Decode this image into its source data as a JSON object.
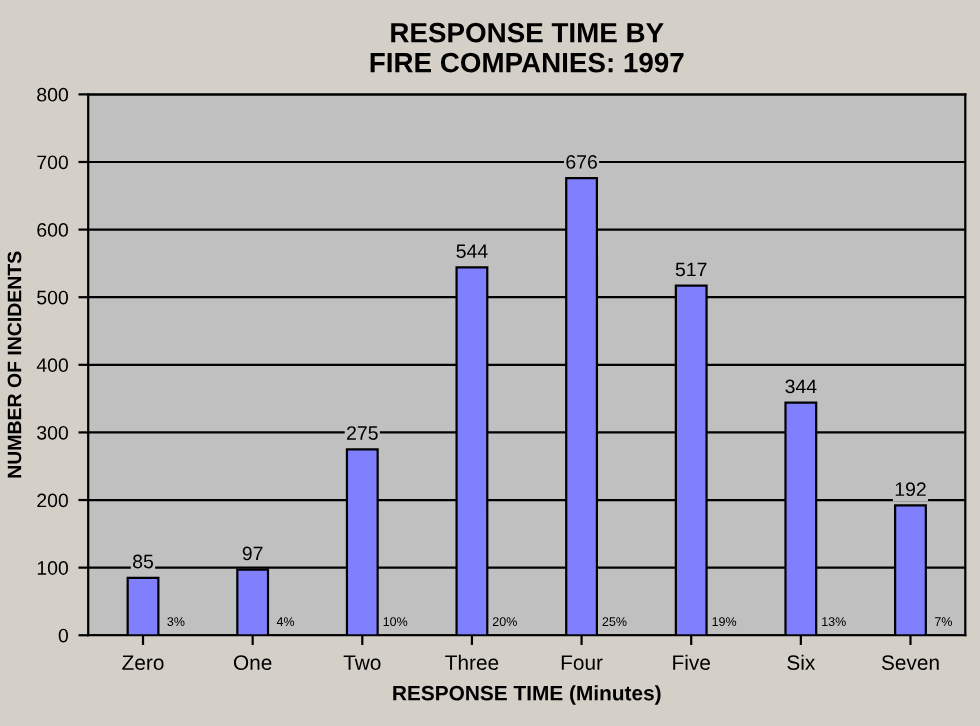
{
  "chart_data": {
    "type": "bar",
    "title": "RESPONSE TIME BY\nFIRE COMPANIES: 1997",
    "xlabel": "RESPONSE TIME (Minutes)",
    "ylabel": "NUMBER OF INCIDENTS",
    "categories": [
      "Zero",
      "One",
      "Two",
      "Three",
      "Four",
      "Five",
      "Six",
      "Seven"
    ],
    "values": [
      85,
      97,
      275,
      544,
      676,
      517,
      344,
      192
    ],
    "color": "#8080ff",
    "data_labels": true,
    "ylim": [
      0,
      800
    ],
    "yticks": [
      0,
      100,
      200,
      300,
      400,
      500,
      600,
      700,
      800
    ],
    "grid": "y",
    "legend": false,
    "annotations": [
      {
        "text": "3%",
        "x": "Zero",
        "y": 10
      },
      {
        "text": "4%",
        "x": "One",
        "y": 10
      },
      {
        "text": "10%",
        "x": "Two",
        "y": 10
      },
      {
        "text": "20%",
        "x": "Three",
        "y": 10
      },
      {
        "text": "25%",
        "x": "Four",
        "y": 10
      },
      {
        "text": "19%",
        "x": "Five",
        "y": 10
      },
      {
        "text": "13%",
        "x": "Six",
        "y": 10
      },
      {
        "text": "7%",
        "x": "Seven",
        "y": 10
      }
    ]
  }
}
